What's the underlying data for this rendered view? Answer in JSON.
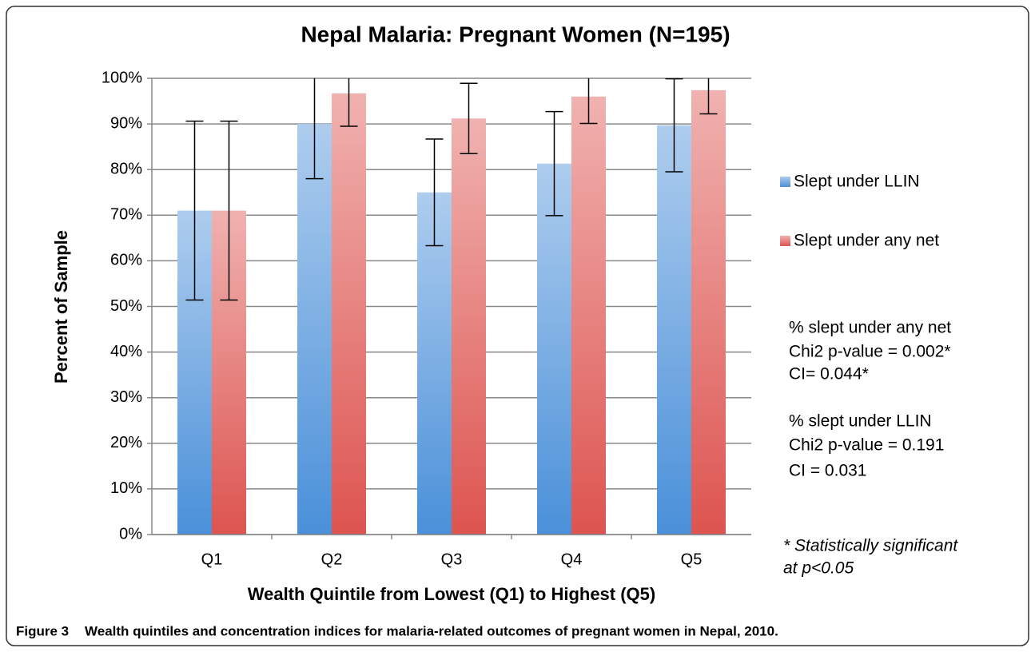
{
  "chart_data": {
    "type": "bar",
    "title": "Nepal Malaria: Pregnant Women (N=195)",
    "x_label": "Wealth Quintile from Lowest (Q1) to Highest (Q5)",
    "y_label": "Percent of Sample",
    "categories": [
      "Q1",
      "Q2",
      "Q3",
      "Q4",
      "Q5"
    ],
    "series": [
      {
        "name": "Slept under LLIN",
        "color": "#4a90d9",
        "values": [
          71,
          90,
          75,
          81.3,
          89.7
        ],
        "errors": [
          19.6,
          12,
          11.7,
          11.4,
          10.2
        ]
      },
      {
        "name": "Slept under any net",
        "color": "#dd5450",
        "values": [
          71,
          96.7,
          91.2,
          96,
          97.4
        ],
        "errors": [
          19.6,
          7.2,
          7.7,
          5.9,
          5.2
        ]
      }
    ],
    "ylim": [
      0,
      100
    ],
    "yticks": [
      {
        "value": 0,
        "label": "0%"
      },
      {
        "value": 10,
        "label": "10%"
      },
      {
        "value": 20,
        "label": "20%"
      },
      {
        "value": 30,
        "label": "30%"
      },
      {
        "value": 40,
        "label": "40%"
      },
      {
        "value": 50,
        "label": "50%"
      },
      {
        "value": 60,
        "label": "60%"
      },
      {
        "value": 70,
        "label": "70%"
      },
      {
        "value": 80,
        "label": "80%"
      },
      {
        "value": 90,
        "label": "90%"
      },
      {
        "value": 100,
        "label": "100%"
      }
    ],
    "grid": true,
    "legend": "right",
    "annotations": [
      "% slept under any net",
      "Chi2 p-value = 0.002*",
      "CI= 0.044*",
      "% slept under LLIN",
      "Chi2 p-value = 0.191",
      "CI = 0.031"
    ],
    "note": [
      "* Statistically significant",
      "at p<0.05"
    ]
  },
  "caption": {
    "label": "Figure 3",
    "text": "Wealth quintiles and concentration indices for malaria-related outcomes of pregnant women in Nepal, 2010."
  }
}
